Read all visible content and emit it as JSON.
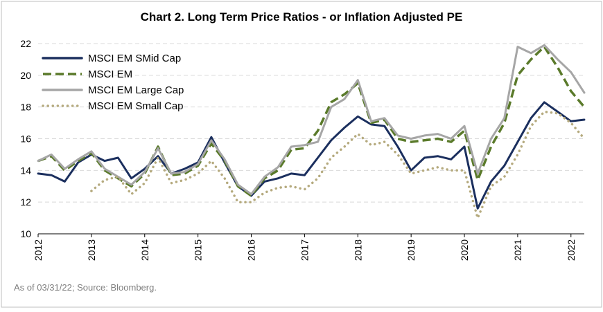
{
  "chart_data": {
    "type": "line",
    "title": "Chart 2. Long Term Price Ratios - or Inflation Adjusted PE",
    "note": "As of 03/31/22; Source:  Bloomberg.",
    "x": [
      2012,
      2012.25,
      2012.5,
      2012.75,
      2013,
      2013.25,
      2013.5,
      2013.75,
      2014,
      2014.25,
      2014.5,
      2014.75,
      2015,
      2015.25,
      2015.5,
      2015.75,
      2016,
      2016.25,
      2016.5,
      2016.75,
      2017,
      2017.25,
      2017.5,
      2017.75,
      2018,
      2018.25,
      2018.5,
      2018.75,
      2019,
      2019.25,
      2019.5,
      2019.75,
      2020,
      2020.25,
      2020.5,
      2020.75,
      2021,
      2021.25,
      2021.5,
      2021.75,
      2022,
      2022.25
    ],
    "series": [
      {
        "name": "MSCI EM SMid Cap",
        "color": "#1b2f5e",
        "style": "solid",
        "values": [
          13.8,
          13.7,
          13.3,
          14.5,
          15.0,
          14.6,
          14.8,
          13.5,
          14.1,
          14.9,
          13.8,
          14.1,
          14.5,
          16.1,
          14.5,
          13.0,
          12.4,
          13.3,
          13.5,
          13.8,
          13.7,
          14.8,
          15.9,
          16.7,
          17.4,
          16.9,
          16.8,
          15.5,
          14.0,
          14.8,
          14.9,
          14.7,
          15.5,
          11.6,
          13.3,
          14.3,
          15.8,
          17.3,
          18.3,
          17.7,
          17.1,
          17.2
        ]
      },
      {
        "name": "MSCI EM",
        "color": "#5a7a2a",
        "style": "dashed",
        "values": [
          14.6,
          14.9,
          14.0,
          14.6,
          15.1,
          14.0,
          13.5,
          13.0,
          13.8,
          15.5,
          13.7,
          13.8,
          14.3,
          15.7,
          14.6,
          13.0,
          12.4,
          13.5,
          14.0,
          15.3,
          15.4,
          16.5,
          18.3,
          18.8,
          19.5,
          17.0,
          17.2,
          16.0,
          15.8,
          15.9,
          16.0,
          15.8,
          16.5,
          13.4,
          15.5,
          17.0,
          20.0,
          21.0,
          21.8,
          20.5,
          19.0,
          18.0
        ]
      },
      {
        "name": "MSCI EM Large Cap",
        "color": "#a6a6a6",
        "style": "solid",
        "values": [
          14.6,
          15.0,
          14.1,
          14.7,
          15.2,
          14.1,
          13.6,
          13.1,
          13.9,
          15.4,
          13.8,
          13.9,
          14.4,
          15.9,
          14.7,
          13.1,
          12.5,
          13.6,
          14.2,
          15.5,
          15.6,
          15.8,
          18.0,
          18.5,
          19.7,
          17.1,
          17.3,
          16.2,
          16.0,
          16.2,
          16.3,
          16.0,
          16.8,
          13.8,
          16.0,
          17.3,
          21.8,
          21.4,
          21.9,
          21.0,
          20.2,
          18.9
        ]
      },
      {
        "name": "MSCI EM Small Cap",
        "color": "#b5aa7e",
        "style": "dotted",
        "values": [
          null,
          null,
          null,
          null,
          12.7,
          13.4,
          13.6,
          12.5,
          13.2,
          14.8,
          13.2,
          13.4,
          13.8,
          14.6,
          13.5,
          12.0,
          12.0,
          12.6,
          12.9,
          13.0,
          12.8,
          13.5,
          14.8,
          15.5,
          16.3,
          15.6,
          15.8,
          15.0,
          13.8,
          14.0,
          14.2,
          14.0,
          14.0,
          11.0,
          13.0,
          13.6,
          15.0,
          16.8,
          17.7,
          17.6,
          17.0,
          16.0
        ]
      }
    ],
    "xlim": [
      2012,
      2022.25
    ],
    "xticks": [
      2012,
      2013,
      2014,
      2015,
      2016,
      2017,
      2018,
      2019,
      2020,
      2021,
      2022
    ],
    "ylim": [
      10,
      22
    ],
    "yticks": [
      10,
      12,
      14,
      16,
      18,
      20,
      22
    ],
    "grid": true,
    "legend": "upper left"
  }
}
